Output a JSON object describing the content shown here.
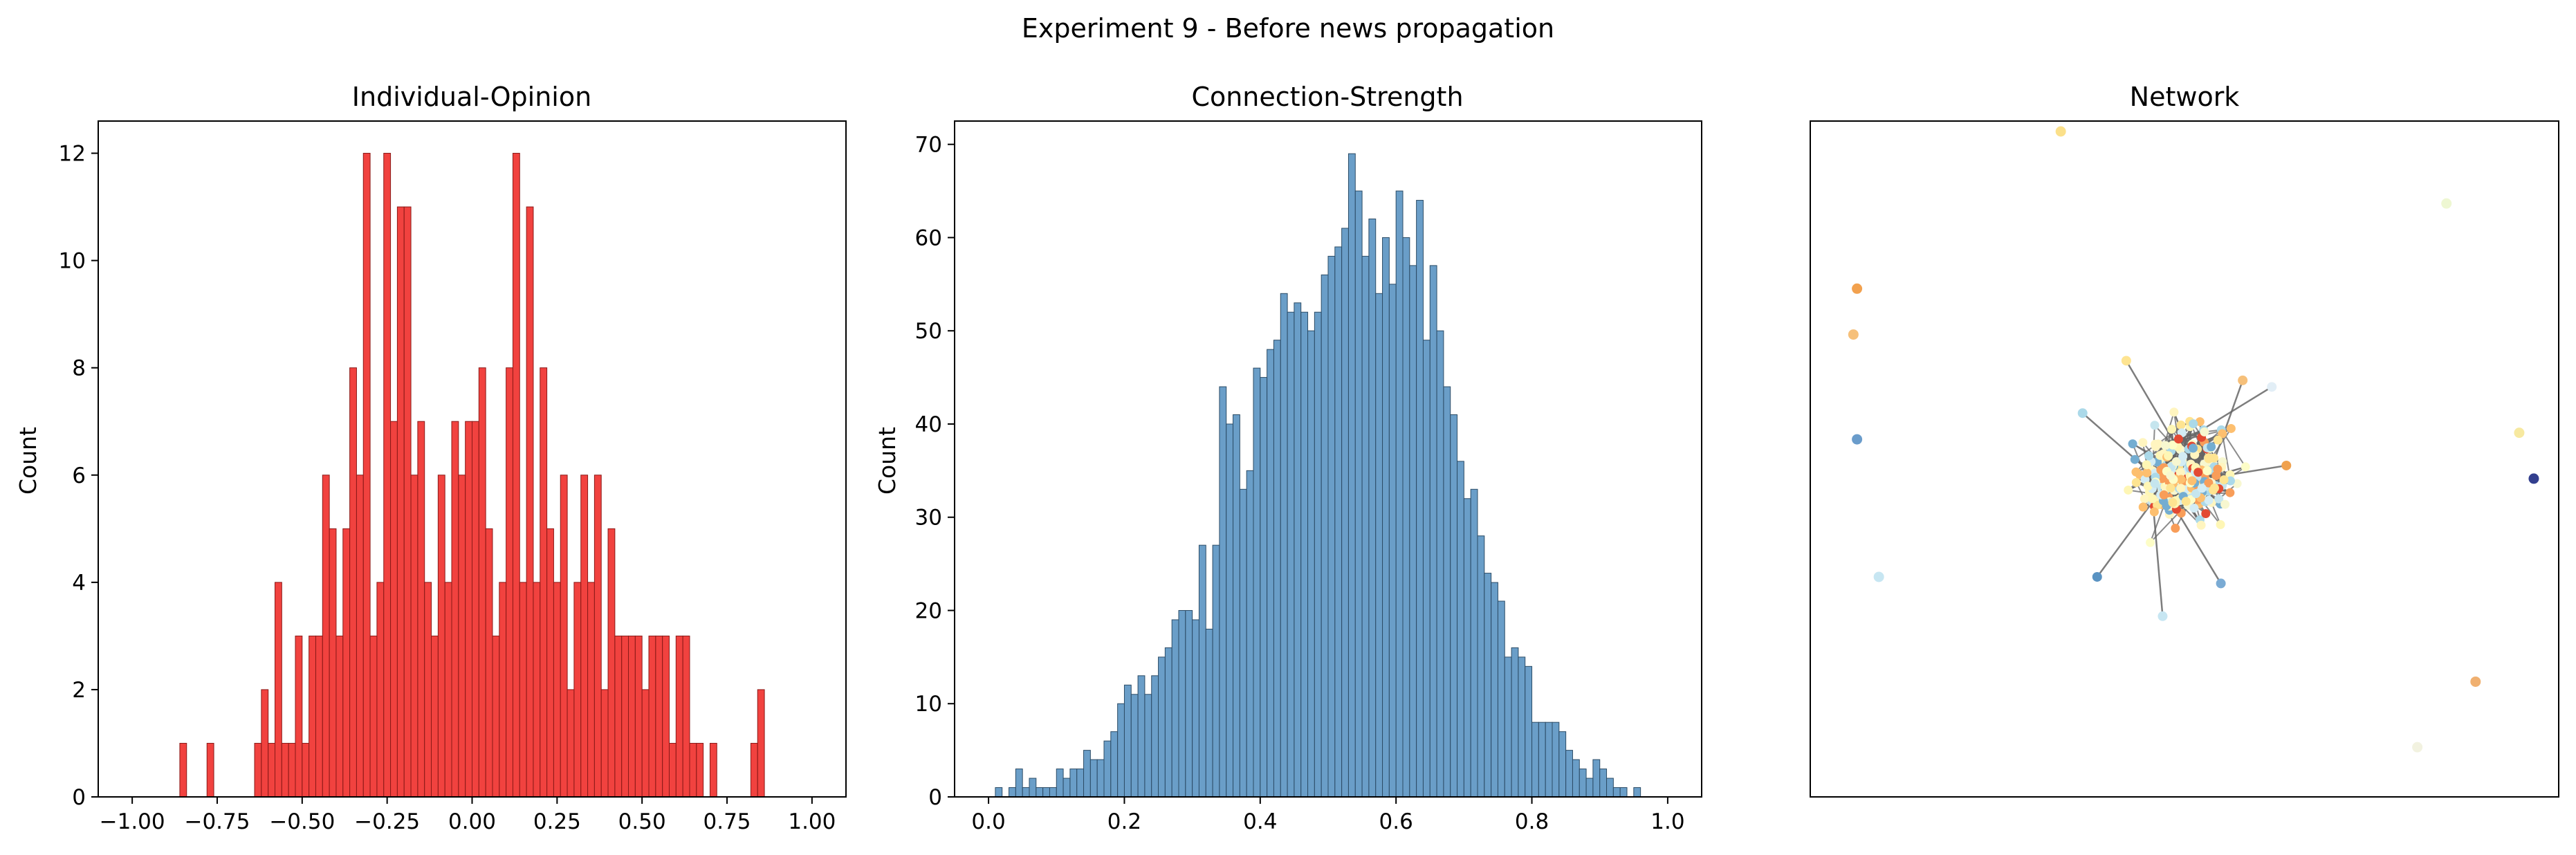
{
  "figure": {
    "suptitle": "Experiment 9 - Before news propagation"
  },
  "chart_data": [
    {
      "type": "bar",
      "title": "Individual-Opinion",
      "xlabel": "",
      "ylabel": "Count",
      "bar_color": "#f02d2a",
      "edge_color": "#8a1a18",
      "xlim": [
        -1.1,
        1.1
      ],
      "ylim": [
        0,
        12.6
      ],
      "xticks": [
        -1.0,
        -0.75,
        -0.5,
        -0.25,
        0.0,
        0.25,
        0.5,
        0.75,
        1.0
      ],
      "xtick_labels": [
        "−1.00",
        "−0.75",
        "−0.50",
        "−0.25",
        "0.00",
        "0.25",
        "0.50",
        "0.75",
        "1.00"
      ],
      "yticks": [
        0,
        2,
        4,
        6,
        8,
        10,
        12
      ],
      "ytick_labels": [
        "0",
        "2",
        "4",
        "6",
        "8",
        "10",
        "12"
      ],
      "bin_start": -1.0,
      "bin_width": 0.02,
      "values": [
        0,
        0,
        0,
        0,
        0,
        0,
        0,
        1,
        0,
        0,
        0,
        1,
        0,
        0,
        0,
        0,
        0,
        0,
        1,
        2,
        1,
        4,
        1,
        1,
        3,
        1,
        3,
        3,
        6,
        5,
        3,
        5,
        8,
        6,
        12,
        3,
        4,
        12,
        7,
        11,
        11,
        6,
        7,
        4,
        3,
        6,
        4,
        7,
        6,
        7,
        7,
        8,
        5,
        3,
        4,
        8,
        12,
        4,
        11,
        4,
        8,
        5,
        4,
        6,
        2,
        4,
        6,
        4,
        6,
        2,
        5,
        3,
        3,
        3,
        3,
        2,
        3,
        3,
        3,
        1,
        3,
        3,
        1,
        1,
        0,
        1,
        0,
        0,
        0,
        0,
        0,
        1,
        2,
        0,
        0,
        0,
        0,
        0,
        0,
        0
      ]
    },
    {
      "type": "bar",
      "title": "Connection-Strength",
      "xlabel": "",
      "ylabel": "Count",
      "bar_color": "#5a93c2",
      "edge_color": "#2c4c66",
      "xlim": [
        -0.05,
        1.05
      ],
      "ylim": [
        0,
        72.5
      ],
      "xticks": [
        0.0,
        0.2,
        0.4,
        0.6,
        0.8,
        1.0
      ],
      "xtick_labels": [
        "0.0",
        "0.2",
        "0.4",
        "0.6",
        "0.8",
        "1.0"
      ],
      "yticks": [
        0,
        10,
        20,
        30,
        40,
        50,
        60,
        70
      ],
      "ytick_labels": [
        "0",
        "10",
        "20",
        "30",
        "40",
        "50",
        "60",
        "70"
      ],
      "bin_start": 0.0,
      "bin_width": 0.01,
      "values": [
        0,
        1,
        0,
        1,
        3,
        1,
        2,
        1,
        1,
        1,
        3,
        2,
        3,
        3,
        5,
        4,
        4,
        6,
        7,
        10,
        12,
        11,
        13,
        11,
        13,
        15,
        16,
        19,
        20,
        20,
        19,
        27,
        18,
        27,
        44,
        40,
        41,
        33,
        35,
        46,
        45,
        48,
        49,
        54,
        52,
        53,
        52,
        50,
        52,
        56,
        58,
        59,
        61,
        69,
        65,
        58,
        62,
        54,
        60,
        55,
        65,
        60,
        57,
        64,
        49,
        57,
        50,
        44,
        41,
        36,
        32,
        33,
        28,
        24,
        23,
        21,
        15,
        16,
        15,
        14,
        8,
        8,
        8,
        8,
        7,
        5,
        4,
        3,
        2,
        4,
        3,
        2,
        1,
        1,
        0,
        1,
        0,
        0,
        0,
        0
      ]
    },
    {
      "type": "scatter",
      "title": "Network",
      "edge_color": "#666666",
      "isolated_nodes": [
        {
          "x": 0.33,
          "y": 1.0,
          "color": "#fbe08a"
        },
        {
          "x": 0.86,
          "y": 0.89,
          "color": "#eef7d2"
        },
        {
          "x": 0.05,
          "y": 0.76,
          "color": "#f2a14e"
        },
        {
          "x": 0.045,
          "y": 0.69,
          "color": "#f6c07a"
        },
        {
          "x": 0.05,
          "y": 0.53,
          "color": "#6a9ccb"
        },
        {
          "x": 0.96,
          "y": 0.54,
          "color": "#f7e9a0"
        },
        {
          "x": 0.98,
          "y": 0.47,
          "color": "#323f8e"
        },
        {
          "x": 0.08,
          "y": 0.32,
          "color": "#c7e6f2"
        },
        {
          "x": 0.9,
          "y": 0.16,
          "color": "#f0b070"
        },
        {
          "x": 0.82,
          "y": 0.06,
          "color": "#f2f2e0"
        }
      ],
      "cluster": {
        "center": [
          0.5,
          0.47
        ],
        "count": 240,
        "palette": [
          "#fdfdc7",
          "#fef6b5",
          "#fee491",
          "#fdbf6f",
          "#f89d59",
          "#abd9e9",
          "#d3ecf4",
          "#c5e5ee",
          "#74add1",
          "#e34a33",
          "#f7f7d0",
          "#fff5c0"
        ],
        "outliers": [
          {
            "x": 0.38,
            "y": 0.32,
            "color": "#5a93c2"
          },
          {
            "x": 0.47,
            "y": 0.26,
            "color": "#c7e6f2"
          },
          {
            "x": 0.55,
            "y": 0.31,
            "color": "#7aabd4"
          },
          {
            "x": 0.64,
            "y": 0.49,
            "color": "#f0a14e"
          },
          {
            "x": 0.62,
            "y": 0.61,
            "color": "#e2eef6"
          },
          {
            "x": 0.42,
            "y": 0.65,
            "color": "#fee491"
          },
          {
            "x": 0.58,
            "y": 0.62,
            "color": "#f6c07a"
          },
          {
            "x": 0.36,
            "y": 0.57,
            "color": "#abd9e9"
          }
        ]
      }
    }
  ]
}
